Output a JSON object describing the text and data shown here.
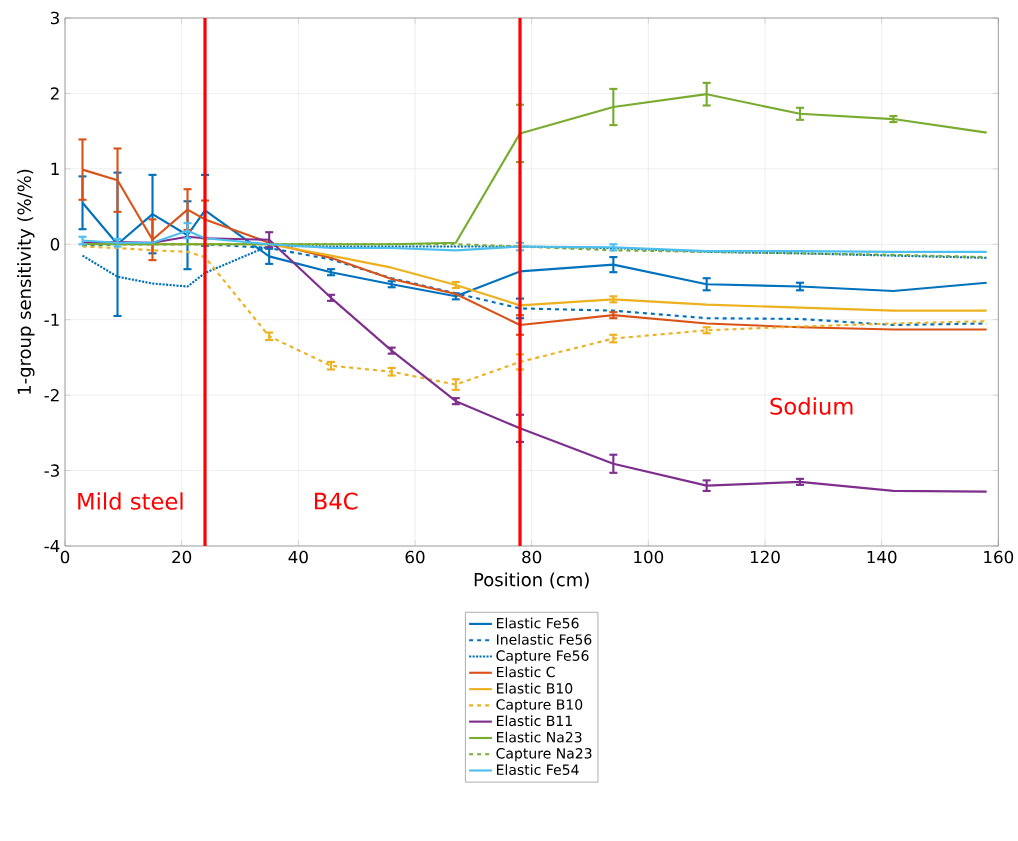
{
  "chart_data": {
    "type": "line",
    "xlabel": "Position (cm)",
    "ylabel": "1-group sensitivity (%/%)",
    "x": [
      3,
      9,
      15,
      21,
      24,
      35,
      45.6,
      56,
      67,
      78,
      94,
      110,
      126,
      142,
      158
    ],
    "xlim": [
      0,
      160
    ],
    "xticks": [
      0,
      20,
      40,
      60,
      80,
      100,
      120,
      140,
      160
    ],
    "ylim": [
      -4,
      3
    ],
    "yticks": [
      -4,
      -3,
      -2,
      -1,
      0,
      1,
      2,
      3
    ],
    "grid": true,
    "legend": "bottom",
    "marker": "none",
    "series": [
      {
        "name": "Elastic Fe56",
        "color": "#0072bd",
        "line_style": "solid",
        "values": [
          0.55,
          0.0,
          0.4,
          0.12,
          0.45,
          -0.16,
          -0.37,
          -0.53,
          -0.69,
          -0.36,
          -0.27,
          -0.53,
          -0.56,
          -0.62,
          -0.51
        ],
        "errors": [
          0.35,
          0.95,
          0.52,
          0.45,
          0.47,
          0.1,
          0.04,
          0.04,
          0.04,
          null,
          0.1,
          0.08,
          0.05,
          null,
          null
        ]
      },
      {
        "name": "Inelastic Fe56",
        "color": "#0072bd",
        "line_style": "dashed",
        "values": [
          -0.02,
          0.0,
          0.0,
          0.0,
          0.0,
          -0.05,
          -0.2,
          -0.45,
          -0.65,
          -0.85,
          -0.88,
          -0.98,
          -0.99,
          -1.07,
          -1.05
        ],
        "errors": [
          null,
          null,
          null,
          null,
          null,
          null,
          null,
          null,
          null,
          0.13,
          null,
          null,
          null,
          null,
          null
        ]
      },
      {
        "name": "Capture Fe56",
        "color": "#0072bd",
        "line_style": "dotted",
        "values": [
          -0.15,
          -0.43,
          -0.52,
          -0.56,
          -0.38,
          -0.02,
          -0.03,
          -0.03,
          -0.03,
          -0.03,
          -0.05,
          -0.1,
          -0.12,
          -0.15,
          -0.18
        ],
        "errors": [
          null,
          null,
          null,
          null,
          null,
          null,
          null,
          null,
          null,
          null,
          null,
          null,
          null,
          null,
          null
        ]
      },
      {
        "name": "Elastic C",
        "color": "#d95319",
        "line_style": "solid",
        "values": [
          0.99,
          0.85,
          0.06,
          0.46,
          0.33,
          0.02,
          -0.18,
          -0.46,
          -0.66,
          -1.07,
          -0.94,
          -1.05,
          -1.1,
          -1.13,
          -1.13
        ],
        "errors": [
          0.4,
          0.42,
          0.27,
          0.27,
          0.25,
          null,
          null,
          null,
          null,
          0.13,
          0.04,
          null,
          null,
          null,
          null
        ]
      },
      {
        "name": "Elastic B10",
        "color": "#edb120",
        "line_style": "solid",
        "values": [
          0.02,
          0.0,
          0.0,
          0.0,
          0.0,
          0.0,
          -0.15,
          -0.31,
          -0.54,
          -0.81,
          -0.73,
          -0.8,
          -0.84,
          -0.88,
          -0.88
        ],
        "errors": [
          null,
          null,
          null,
          null,
          null,
          null,
          null,
          null,
          0.04,
          null,
          0.04,
          null,
          null,
          null,
          null
        ]
      },
      {
        "name": "Capture B10",
        "color": "#edb120",
        "line_style": "dashed",
        "values": [
          -0.03,
          -0.05,
          -0.08,
          -0.1,
          -0.17,
          -1.22,
          -1.61,
          -1.69,
          -1.86,
          -1.56,
          -1.25,
          -1.14,
          -1.09,
          -1.05,
          -1.02
        ],
        "errors": [
          null,
          null,
          null,
          null,
          null,
          0.05,
          0.05,
          0.05,
          0.07,
          0.1,
          0.05,
          0.04,
          null,
          null,
          null
        ]
      },
      {
        "name": "Elastic B11",
        "color": "#7e2f8e",
        "line_style": "solid",
        "values": [
          0.02,
          0.03,
          0.02,
          0.1,
          0.08,
          0.06,
          -0.71,
          -1.41,
          -2.08,
          -2.44,
          -2.91,
          -3.2,
          -3.15,
          -3.27,
          -3.28
        ],
        "errors": [
          null,
          null,
          null,
          null,
          null,
          0.1,
          0.04,
          0.04,
          0.04,
          0.18,
          0.12,
          0.07,
          0.04,
          null,
          null
        ]
      },
      {
        "name": "Elastic Na23",
        "color": "#77ac30",
        "line_style": "solid",
        "values": [
          0.0,
          0.0,
          0.0,
          0.0,
          0.0,
          0.0,
          0.0,
          0.0,
          0.02,
          1.47,
          1.82,
          1.99,
          1.73,
          1.66,
          1.48
        ],
        "errors": [
          null,
          null,
          null,
          null,
          null,
          null,
          null,
          null,
          null,
          0.38,
          0.24,
          0.15,
          0.08,
          0.04,
          null
        ]
      },
      {
        "name": "Capture Na23",
        "color": "#77ac30",
        "line_style": "dashed",
        "values": [
          0.0,
          0.0,
          0.0,
          0.0,
          0.0,
          0.0,
          0.0,
          0.0,
          0.0,
          -0.03,
          -0.08,
          -0.1,
          -0.12,
          -0.14,
          -0.17
        ]
      },
      {
        "name": "Elastic Fe54",
        "color": "#4dbeee",
        "line_style": "solid",
        "values": [
          0.05,
          0.02,
          0.02,
          0.18,
          0.08,
          0.0,
          -0.05,
          -0.05,
          -0.08,
          -0.03,
          -0.04,
          -0.09,
          -0.09,
          -0.1,
          -0.1
        ],
        "errors": [
          0.05,
          0.05,
          null,
          0.1,
          null,
          null,
          null,
          null,
          null,
          0.05,
          0.04,
          null,
          null,
          null,
          null
        ]
      }
    ],
    "ref_lines": [
      {
        "axis": "x",
        "value": 24,
        "color": "#ff0000"
      },
      {
        "axis": "x",
        "value": 78,
        "color": "#ff0000"
      }
    ],
    "annotations": [
      "Mild steel",
      "B4C",
      "Sodium"
    ]
  }
}
